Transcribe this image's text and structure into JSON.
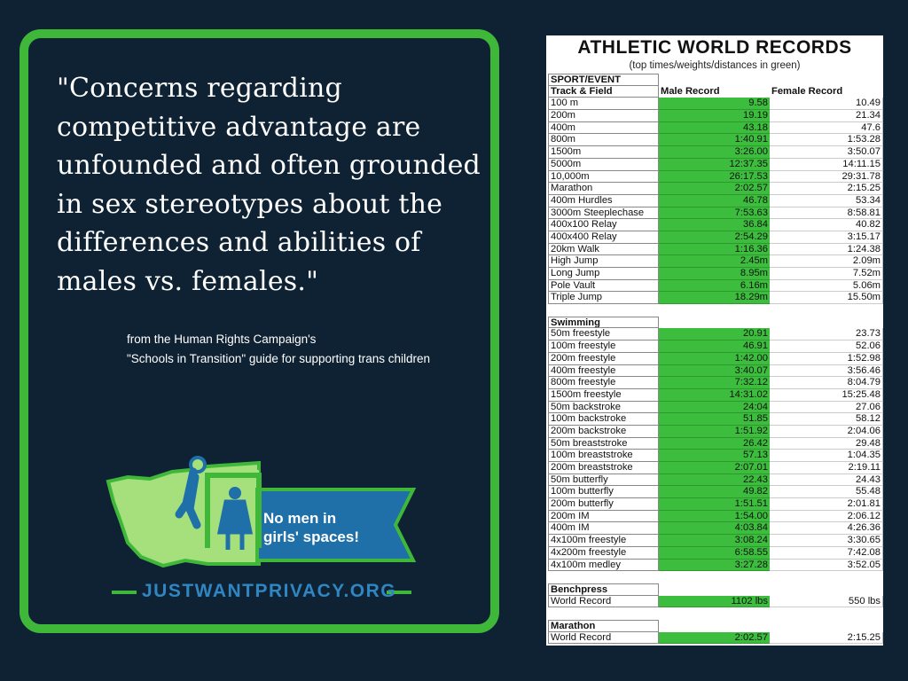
{
  "quote": {
    "text": "\"Concerns regarding competitive advantage are unfounded and often grounded in sex stereotypes about the differences and abilities of males vs. females.\"",
    "attribution_line1": "from the Human Rights Campaign's",
    "attribution_line2": "\"Schools in Transition\" guide for supporting trans children"
  },
  "logo": {
    "banner_line1": "No men in",
    "banner_line2": "girls' spaces!",
    "url": "JUSTWANTPRIVACY.ORG",
    "colors": {
      "state": "#a5e07d",
      "border": "#3fb83a",
      "banner": "#1f6fa8",
      "figure": "#1f6fa8"
    }
  },
  "records": {
    "title": "ATHLETIC WORLD RECORDS",
    "subtitle": "(top times/weights/distances in green)",
    "section_label": "SPORT/EVENT",
    "col_event": "Track & Field",
    "col_male": "Male Record",
    "col_female": "Female Record",
    "track": [
      {
        "event": "100 m",
        "male": "9.58",
        "female": "10.49"
      },
      {
        "event": "200m",
        "male": "19.19",
        "female": "21.34"
      },
      {
        "event": "400m",
        "male": "43.18",
        "female": "47.6"
      },
      {
        "event": "800m",
        "male": "1:40.91",
        "female": "1:53.28"
      },
      {
        "event": "1500m",
        "male": "3:26.00",
        "female": "3:50.07"
      },
      {
        "event": "5000m",
        "male": "12:37.35",
        "female": "14:11.15"
      },
      {
        "event": "10,000m",
        "male": "26:17.53",
        "female": "29:31.78"
      },
      {
        "event": "Marathon",
        "male": "2:02.57",
        "female": "2:15.25"
      },
      {
        "event": "400m Hurdles",
        "male": "46.78",
        "female": "53.34"
      },
      {
        "event": "3000m Steeplechase",
        "male": "7:53.63",
        "female": "8:58.81"
      },
      {
        "event": "400x100 Relay",
        "male": "36.84",
        "female": "40.82"
      },
      {
        "event": "400x400 Relay",
        "male": "2:54.29",
        "female": "3:15.17"
      },
      {
        "event": "20km Walk",
        "male": "1:16.36",
        "female": "1:24.38"
      },
      {
        "event": "High Jump",
        "male": "2.45m",
        "female": "2.09m"
      },
      {
        "event": "Long Jump",
        "male": "8.95m",
        "female": "7.52m"
      },
      {
        "event": "Pole Vault",
        "male": "6.16m",
        "female": "5.06m"
      },
      {
        "event": "Triple Jump",
        "male": "18.29m",
        "female": "15.50m"
      }
    ],
    "swimming_label": "Swimming",
    "swimming": [
      {
        "event": "50m freestyle",
        "male": "20.91",
        "female": "23.73"
      },
      {
        "event": "100m freestyle",
        "male": "46.91",
        "female": "52.06"
      },
      {
        "event": "200m freestyle",
        "male": "1:42.00",
        "female": "1:52.98"
      },
      {
        "event": "400m freestyle",
        "male": "3:40.07",
        "female": "3:56.46"
      },
      {
        "event": "800m freestyle",
        "male": "7:32.12",
        "female": "8:04.79"
      },
      {
        "event": "1500m freestyle",
        "male": "14:31.02",
        "female": "15:25.48"
      },
      {
        "event": "50m backstroke",
        "male": "24:04",
        "female": "27.06"
      },
      {
        "event": "100m backstroke",
        "male": "51.85",
        "female": "58.12"
      },
      {
        "event": "200m backstroke",
        "male": "1:51.92",
        "female": "2:04.06"
      },
      {
        "event": "50m breaststroke",
        "male": "26.42",
        "female": "29.48"
      },
      {
        "event": "100m breaststroke",
        "male": "57.13",
        "female": "1:04.35"
      },
      {
        "event": "200m breaststroke",
        "male": "2:07.01",
        "female": "2:19.11"
      },
      {
        "event": "50m butterfly",
        "male": "22.43",
        "female": "24.43"
      },
      {
        "event": "100m butterfly",
        "male": "49.82",
        "female": "55.48"
      },
      {
        "event": "200m butterfly",
        "male": "1:51.51",
        "female": "2:01.81"
      },
      {
        "event": "200m IM",
        "male": "1:54.00",
        "female": "2:06.12"
      },
      {
        "event": "400m IM",
        "male": "4:03.84",
        "female": "4:26.36"
      },
      {
        "event": "4x100m freestyle",
        "male": "3:08.24",
        "female": "3:30.65"
      },
      {
        "event": "4x200m freestyle",
        "male": "6:58.55",
        "female": "7:42.08"
      },
      {
        "event": "4x100m medley",
        "male": "3:27.28",
        "female": "3:52.05"
      }
    ],
    "benchpress_label": "Benchpress",
    "benchpress": [
      {
        "event": "World Record",
        "male": "1102 lbs",
        "female": "550 lbs"
      }
    ],
    "marathon_label": "Marathon",
    "marathon": [
      {
        "event": "World Record",
        "male": "2:02.57",
        "female": "2:15.25"
      }
    ]
  }
}
